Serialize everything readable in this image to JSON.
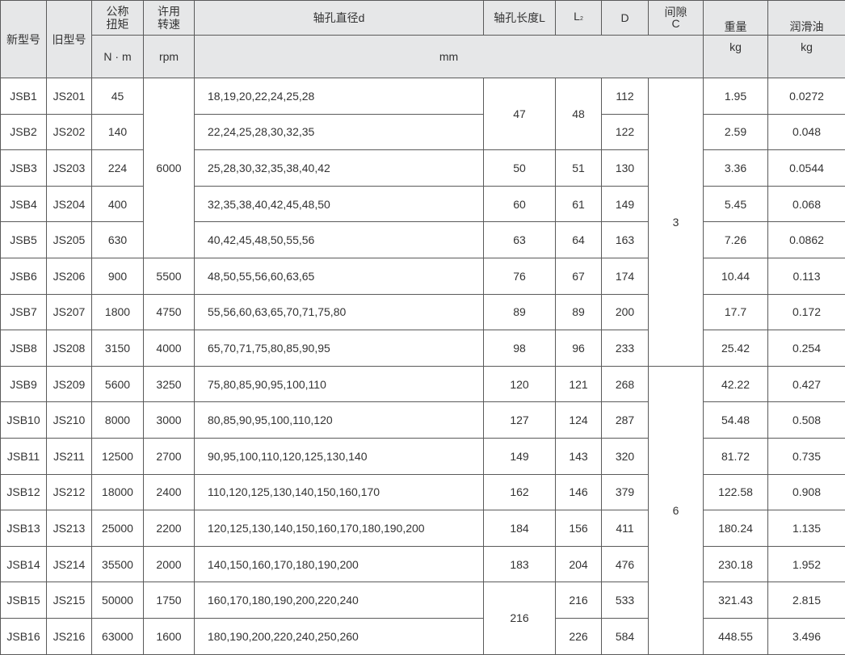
{
  "header": {
    "new_model": "新型号",
    "old_model": "旧型号",
    "torque": "公称扭矩",
    "torque_unit": "N · m",
    "speed": "许用转速",
    "speed_unit": "rpm",
    "bore_diameter": "轴孔直径d",
    "bore_length": "轴孔长度L",
    "l2": "L",
    "l2_sub": "2",
    "outer_d": "D",
    "gap": "间隙C",
    "mm_unit": "mm",
    "weight": "重量",
    "weight_unit": "kg",
    "oil": "润滑油",
    "oil_unit": "kg"
  },
  "rows": [
    {
      "new": "JSB1",
      "old": "JS201",
      "torque": "45",
      "rpm": "6000",
      "d": "18,19,20,22,24,25,28",
      "L": "47",
      "L2": "48",
      "D": "112",
      "C": "3",
      "weight": "1.95",
      "oil": "0.0272"
    },
    {
      "new": "JSB2",
      "old": "JS202",
      "torque": "140",
      "rpm": "6000",
      "d": "22,24,25,28,30,32,35",
      "L": "47",
      "L2": "48",
      "D": "122",
      "C": "3",
      "weight": "2.59",
      "oil": "0.048"
    },
    {
      "new": "JSB3",
      "old": "JS203",
      "torque": "224",
      "rpm": "6000",
      "d": "25,28,30,32,35,38,40,42",
      "L": "50",
      "L2": "51",
      "D": "130",
      "C": "3",
      "weight": "3.36",
      "oil": "0.0544"
    },
    {
      "new": "JSB4",
      "old": "JS204",
      "torque": "400",
      "rpm": "6000",
      "d": "32,35,38,40,42,45,48,50",
      "L": "60",
      "L2": "61",
      "D": "149",
      "C": "3",
      "weight": "5.45",
      "oil": "0.068"
    },
    {
      "new": "JSB5",
      "old": "JS205",
      "torque": "630",
      "rpm": "6000",
      "d": "40,42,45,48,50,55,56",
      "L": "63",
      "L2": "64",
      "D": "163",
      "C": "3",
      "weight": "7.26",
      "oil": "0.0862"
    },
    {
      "new": "JSB6",
      "old": "JS206",
      "torque": "900",
      "rpm": "5500",
      "d": "48,50,55,56,60,63,65",
      "L": "76",
      "L2": "67",
      "D": "174",
      "C": "3",
      "weight": "10.44",
      "oil": "0.113"
    },
    {
      "new": "JSB7",
      "old": "JS207",
      "torque": "1800",
      "rpm": "4750",
      "d": "55,56,60,63,65,70,71,75,80",
      "L": "89",
      "L2": "89",
      "D": "200",
      "C": "3",
      "weight": "17.7",
      "oil": "0.172"
    },
    {
      "new": "JSB8",
      "old": "JS208",
      "torque": "3150",
      "rpm": "4000",
      "d": "65,70,71,75,80,85,90,95",
      "L": "98",
      "L2": "96",
      "D": "233",
      "C": "3",
      "weight": "25.42",
      "oil": "0.254"
    },
    {
      "new": "JSB9",
      "old": "JS209",
      "torque": "5600",
      "rpm": "3250",
      "d": "75,80,85,90,95,100,110",
      "L": "120",
      "L2": "121",
      "D": "268",
      "C": "6",
      "weight": "42.22",
      "oil": "0.427"
    },
    {
      "new": "JSB10",
      "old": "JS210",
      "torque": "8000",
      "rpm": "3000",
      "d": "80,85,90,95,100,110,120",
      "L": "127",
      "L2": "124",
      "D": "287",
      "C": "6",
      "weight": "54.48",
      "oil": "0.508"
    },
    {
      "new": "JSB11",
      "old": "JS211",
      "torque": "12500",
      "rpm": "2700",
      "d": "90,95,100,110,120,125,130,140",
      "L": "149",
      "L2": "143",
      "D": "320",
      "C": "6",
      "weight": "81.72",
      "oil": "0.735"
    },
    {
      "new": "JSB12",
      "old": "JS212",
      "torque": "18000",
      "rpm": "2400",
      "d": "110,120,125,130,140,150,160,170",
      "L": "162",
      "L2": "146",
      "D": "379",
      "C": "6",
      "weight": "122.58",
      "oil": "0.908"
    },
    {
      "new": "JSB13",
      "old": "JS213",
      "torque": "25000",
      "rpm": "2200",
      "d": "120,125,130,140,150,160,170,180,190,200",
      "L": "184",
      "L2": "156",
      "D": "411",
      "C": "6",
      "weight": "180.24",
      "oil": "1.135"
    },
    {
      "new": "JSB14",
      "old": "JS214",
      "torque": "35500",
      "rpm": "2000",
      "d": "140,150,160,170,180,190,200",
      "L": "183",
      "L2": "204",
      "D": "476",
      "C": "6",
      "weight": "230.18",
      "oil": "1.952"
    },
    {
      "new": "JSB15",
      "old": "JS215",
      "torque": "50000",
      "rpm": "1750",
      "d": "160,170,180,190,200,220,240",
      "L": "216",
      "L2": "216",
      "D": "533",
      "C": "6",
      "weight": "321.43",
      "oil": "2.815"
    },
    {
      "new": "JSB16",
      "old": "JS216",
      "torque": "63000",
      "rpm": "1600",
      "d": "180,190,200,220,240,250,260",
      "L": "216",
      "L2": "226",
      "D": "584",
      "C": "6",
      "weight": "448.55",
      "oil": "3.496"
    }
  ]
}
